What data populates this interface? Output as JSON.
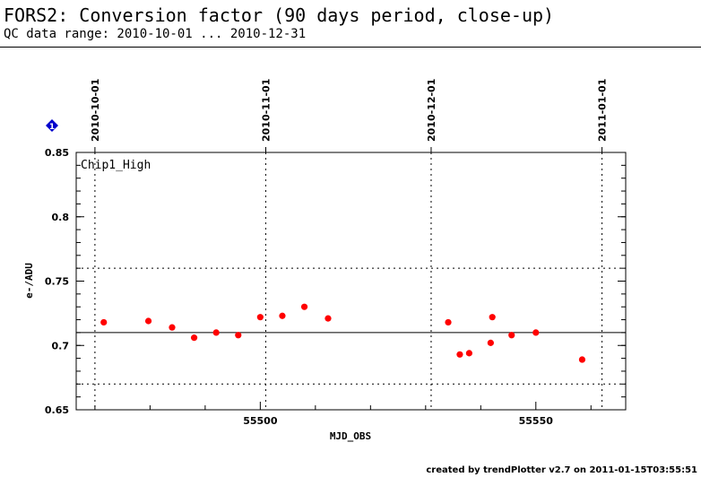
{
  "header": {
    "title": "FORS2: Conversion factor (90 days period, close-up)",
    "subtitle": "QC data range: 2010-10-01 ... 2010-12-31"
  },
  "footer": {
    "text": "created by trendPlotter v2.7 on 2011-01-15T03:55:51"
  },
  "marker": {
    "label": "1",
    "color": "#0000cc"
  },
  "chart_data": {
    "type": "scatter",
    "title": "",
    "panel_label": "Chip1_High",
    "xlabel": "MJD_OBS",
    "ylabel": "e-/ADU",
    "xlim": [
      55466.6,
      55566.3
    ],
    "ylim": [
      0.65,
      0.85
    ],
    "x_ticks": [
      55500,
      55550
    ],
    "y_ticks": [
      0.65,
      0.7,
      0.75,
      0.8,
      0.85
    ],
    "date_ticks": [
      {
        "label": "2010-10-01",
        "mjd": 55470
      },
      {
        "label": "2010-11-01",
        "mjd": 55501
      },
      {
        "label": "2010-12-01",
        "mjd": 55531
      },
      {
        "label": "2011-01-01",
        "mjd": 55562
      }
    ],
    "reference_lines": [
      {
        "value": 0.71,
        "style": "solid"
      },
      {
        "value": 0.76,
        "style": "dotted"
      },
      {
        "value": 0.67,
        "style": "dotted"
      }
    ],
    "grid": false,
    "point_color": "#ff0000",
    "series": [
      {
        "points": [
          {
            "x": 55471.6,
            "y": 0.718
          },
          {
            "x": 55479.7,
            "y": 0.719
          },
          {
            "x": 55484.0,
            "y": 0.714
          },
          {
            "x": 55488.0,
            "y": 0.706
          },
          {
            "x": 55492.0,
            "y": 0.71
          },
          {
            "x": 55496.0,
            "y": 0.708
          },
          {
            "x": 55500.0,
            "y": 0.722
          },
          {
            "x": 55504.0,
            "y": 0.723
          },
          {
            "x": 55508.0,
            "y": 0.73
          },
          {
            "x": 55512.3,
            "y": 0.721
          },
          {
            "x": 55534.1,
            "y": 0.718
          },
          {
            "x": 55536.2,
            "y": 0.693
          },
          {
            "x": 55537.9,
            "y": 0.694
          },
          {
            "x": 55541.8,
            "y": 0.702
          },
          {
            "x": 55542.1,
            "y": 0.722
          },
          {
            "x": 55545.6,
            "y": 0.708
          },
          {
            "x": 55550.0,
            "y": 0.71
          },
          {
            "x": 55558.4,
            "y": 0.689
          }
        ]
      }
    ]
  }
}
